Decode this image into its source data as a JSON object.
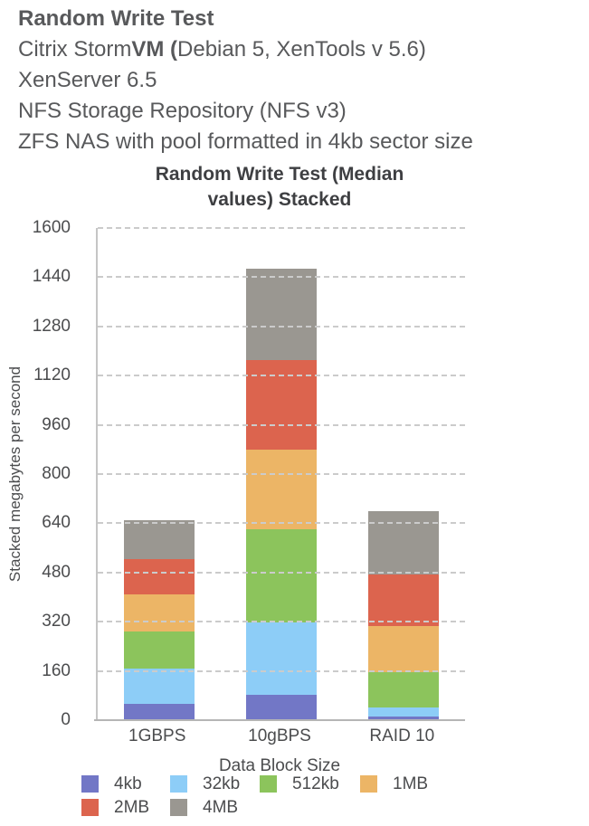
{
  "header": {
    "line1": "Random Write Test",
    "line2_normal1": "Citrix Storm",
    "line2_bold": "VM (",
    "line2_normal2": "Debian 5, XenTools v 5.6)",
    "line3": "XenServer 6.5",
    "line4": "NFS Storage Repository (NFS v3)",
    "line5": "ZFS NAS with pool formatted in 4kb sector size"
  },
  "chart_data": {
    "type": "bar",
    "stacked": true,
    "title": "Random Write Test (Median values) Stacked",
    "title_lines": [
      "Random Write Test (Median",
      "values) Stacked"
    ],
    "categories": [
      "1GBPS",
      "10gBPS",
      "RAID 10"
    ],
    "series": [
      {
        "name": "4kb",
        "color": "#7277c6",
        "values": [
          53,
          82,
          11
        ]
      },
      {
        "name": "32kb",
        "color": "#8dcdf7",
        "values": [
          114,
          235,
          29
        ]
      },
      {
        "name": "512kb",
        "color": "#8cc45c",
        "values": [
          121,
          303,
          117
        ]
      },
      {
        "name": "1MB",
        "color": "#ecb566",
        "values": [
          122,
          260,
          148
        ]
      },
      {
        "name": "2MB",
        "color": "#dc644e",
        "values": [
          115,
          290,
          170
        ]
      },
      {
        "name": "4MB",
        "color": "#9a9791",
        "values": [
          125,
          298,
          205
        ]
      }
    ],
    "xlabel": "",
    "ylabel": "Stacked megabytes per second",
    "ylim": [
      0,
      1600
    ],
    "yticks": [
      0,
      160,
      320,
      480,
      640,
      800,
      960,
      1120,
      1280,
      1440,
      1600
    ],
    "grid": "horizontal-dashed",
    "legend_title": "Data Block Size",
    "legend_position": "bottom",
    "colors": {
      "gridline": "#cbcbcb",
      "axis_line": "#b5b5b5",
      "header_text": "#58595b",
      "title_text": "#3e3f42",
      "tick_text": "#4b4c4e"
    }
  }
}
